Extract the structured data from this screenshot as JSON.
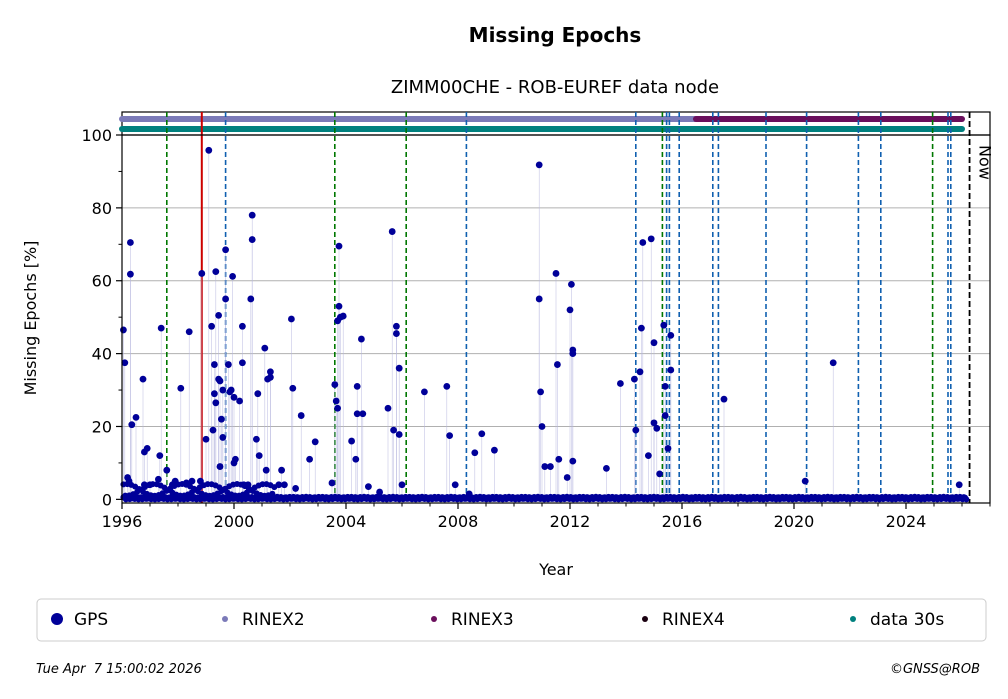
{
  "chart_data": {
    "type": "scatter",
    "title": "Missing Epochs",
    "subtitle": "ZIMM00CHE - ROB-EUREF data node",
    "xlabel": "Year",
    "ylabel": "Missing Epochs [%]",
    "xlim": [
      1996.0,
      2027.0
    ],
    "ylim": [
      -1,
      100
    ],
    "x_ticks": [
      1996,
      2000,
      2004,
      2008,
      2012,
      2016,
      2020,
      2024
    ],
    "y_ticks": [
      0,
      20,
      40,
      60,
      80,
      100
    ],
    "grid": "horizontal",
    "now_label": "Now",
    "now_x": 2026.27,
    "red_line_x": 1998.85,
    "green_lines_x": [
      1997.6,
      2003.6,
      2006.15,
      2015.3,
      2024.95
    ],
    "blue_lines_x": [
      1999.7,
      2008.3,
      2014.35,
      2015.45,
      2015.55,
      2015.9,
      2017.1,
      2017.3,
      2019.0,
      2020.45,
      2022.3,
      2023.1,
      2025.5,
      2025.6
    ],
    "top_bars": [
      {
        "name": "RINEX2",
        "color": "#7b7ab8",
        "start": 1996.0,
        "end": 2016.5
      },
      {
        "name": "RINEX3",
        "color": "#6a0f5c",
        "start": 2016.5,
        "end": 2026.0
      },
      {
        "name": "data 30s",
        "color": "#00807e",
        "start": 1996.0,
        "end": 2026.0
      }
    ],
    "series": [
      {
        "name": "GPS",
        "color": "#000099",
        "points": [
          [
            1996.05,
            46.5
          ],
          [
            1996.1,
            37.5
          ],
          [
            1996.2,
            6
          ],
          [
            1996.25,
            5
          ],
          [
            1996.3,
            70.5
          ],
          [
            1996.3,
            61.8
          ],
          [
            1996.35,
            20.5
          ],
          [
            1996.5,
            22.5
          ],
          [
            1996.75,
            33
          ],
          [
            1996.8,
            13
          ],
          [
            1996.9,
            14
          ],
          [
            1996.8,
            4
          ],
          [
            1997.0,
            4
          ],
          [
            1997.3,
            5.5
          ],
          [
            1997.35,
            12
          ],
          [
            1997.4,
            47
          ],
          [
            1997.6,
            8
          ],
          [
            1997.8,
            4
          ],
          [
            1997.9,
            5
          ],
          [
            1998.1,
            30.5
          ],
          [
            1998.3,
            4.5
          ],
          [
            1998.4,
            46
          ],
          [
            1998.5,
            5
          ],
          [
            1998.8,
            5
          ],
          [
            1998.85,
            62
          ],
          [
            1999.0,
            16.5
          ],
          [
            1999.1,
            95.8
          ],
          [
            1999.2,
            47.5
          ],
          [
            1999.25,
            19
          ],
          [
            1999.3,
            37
          ],
          [
            1999.3,
            29
          ],
          [
            1999.35,
            26.5
          ],
          [
            1999.35,
            62.5
          ],
          [
            1999.45,
            50.5
          ],
          [
            1999.45,
            33
          ],
          [
            1999.5,
            9
          ],
          [
            1999.5,
            32.5
          ],
          [
            1999.55,
            22
          ],
          [
            1999.6,
            17
          ],
          [
            1999.6,
            30
          ],
          [
            1999.7,
            55
          ],
          [
            1999.7,
            68.5
          ],
          [
            1999.8,
            37
          ],
          [
            1999.85,
            29.5
          ],
          [
            1999.9,
            30
          ],
          [
            1999.95,
            61.2
          ],
          [
            2000.0,
            28
          ],
          [
            2000.0,
            10
          ],
          [
            2000.05,
            11
          ],
          [
            2000.2,
            27
          ],
          [
            2000.3,
            37.5
          ],
          [
            2000.3,
            47.5
          ],
          [
            2000.35,
            4
          ],
          [
            2000.5,
            4
          ],
          [
            2000.6,
            55
          ],
          [
            2000.65,
            78
          ],
          [
            2000.65,
            71.3
          ],
          [
            2000.8,
            16.5
          ],
          [
            2000.9,
            12
          ],
          [
            2000.85,
            29
          ],
          [
            2001.1,
            41.5
          ],
          [
            2001.15,
            8
          ],
          [
            2001.2,
            33
          ],
          [
            2001.3,
            35
          ],
          [
            2001.3,
            33.5
          ],
          [
            2001.6,
            4
          ],
          [
            2001.7,
            8
          ],
          [
            2001.8,
            4
          ],
          [
            2002.05,
            49.5
          ],
          [
            2002.1,
            30.5
          ],
          [
            2002.2,
            3
          ],
          [
            2002.4,
            23
          ],
          [
            2002.7,
            11
          ],
          [
            2002.9,
            15.8
          ],
          [
            2003.5,
            4.5
          ],
          [
            2003.6,
            31.5
          ],
          [
            2003.65,
            27
          ],
          [
            2003.7,
            25
          ],
          [
            2003.7,
            49
          ],
          [
            2003.75,
            53
          ],
          [
            2003.75,
            69.5
          ],
          [
            2003.8,
            50
          ],
          [
            2003.9,
            50.3
          ],
          [
            2004.2,
            16
          ],
          [
            2004.35,
            11
          ],
          [
            2004.4,
            31
          ],
          [
            2004.4,
            23.5
          ],
          [
            2004.55,
            44
          ],
          [
            2004.6,
            23.5
          ],
          [
            2004.8,
            3.5
          ],
          [
            2005.2,
            2
          ],
          [
            2005.5,
            25
          ],
          [
            2005.65,
            73.5
          ],
          [
            2005.7,
            19
          ],
          [
            2005.8,
            45.5
          ],
          [
            2005.8,
            47.5
          ],
          [
            2005.9,
            36
          ],
          [
            2005.9,
            17.8
          ],
          [
            2006.0,
            4
          ],
          [
            2006.8,
            29.5
          ],
          [
            2007.6,
            31
          ],
          [
            2007.7,
            17.5
          ],
          [
            2007.9,
            4
          ],
          [
            2008.4,
            1.5
          ],
          [
            2008.6,
            12.8
          ],
          [
            2008.85,
            18
          ],
          [
            2009.3,
            13.5
          ],
          [
            2010.9,
            91.8
          ],
          [
            2010.9,
            55
          ],
          [
            2010.95,
            29.5
          ],
          [
            2011.0,
            20
          ],
          [
            2011.1,
            9
          ],
          [
            2011.3,
            9
          ],
          [
            2011.5,
            62
          ],
          [
            2011.55,
            37
          ],
          [
            2011.6,
            11
          ],
          [
            2011.9,
            6
          ],
          [
            2012.0,
            52
          ],
          [
            2012.05,
            59
          ],
          [
            2012.1,
            41
          ],
          [
            2012.1,
            40
          ],
          [
            2012.1,
            10.5
          ],
          [
            2013.3,
            8.5
          ],
          [
            2013.8,
            31.8
          ],
          [
            2014.3,
            33
          ],
          [
            2014.35,
            19
          ],
          [
            2014.5,
            35
          ],
          [
            2014.55,
            47
          ],
          [
            2014.6,
            70.5
          ],
          [
            2014.9,
            71.5
          ],
          [
            2014.8,
            12
          ],
          [
            2015.0,
            43
          ],
          [
            2015.0,
            21
          ],
          [
            2015.1,
            19.5
          ],
          [
            2015.2,
            7
          ],
          [
            2015.35,
            47.8
          ],
          [
            2015.4,
            31
          ],
          [
            2015.4,
            23
          ],
          [
            2015.5,
            14
          ],
          [
            2015.6,
            35.5
          ],
          [
            2015.6,
            45
          ],
          [
            2017.5,
            27.5
          ],
          [
            2020.4,
            5
          ],
          [
            2021.4,
            37.5
          ],
          [
            2025.9,
            4
          ]
        ]
      }
    ],
    "legend": [
      {
        "label": "GPS",
        "color": "#000099",
        "marker": "large"
      },
      {
        "label": "RINEX2",
        "color": "#7b7ab8",
        "marker": "small"
      },
      {
        "label": "RINEX3",
        "color": "#6a0f5c",
        "marker": "small"
      },
      {
        "label": "RINEX4",
        "color": "#1a0010",
        "marker": "small"
      },
      {
        "label": "data 30s",
        "color": "#00807e",
        "marker": "small"
      }
    ]
  },
  "footer": {
    "timestamp": "Tue Apr  7 15:00:02 2026",
    "copyright": "©GNSS@ROB"
  }
}
